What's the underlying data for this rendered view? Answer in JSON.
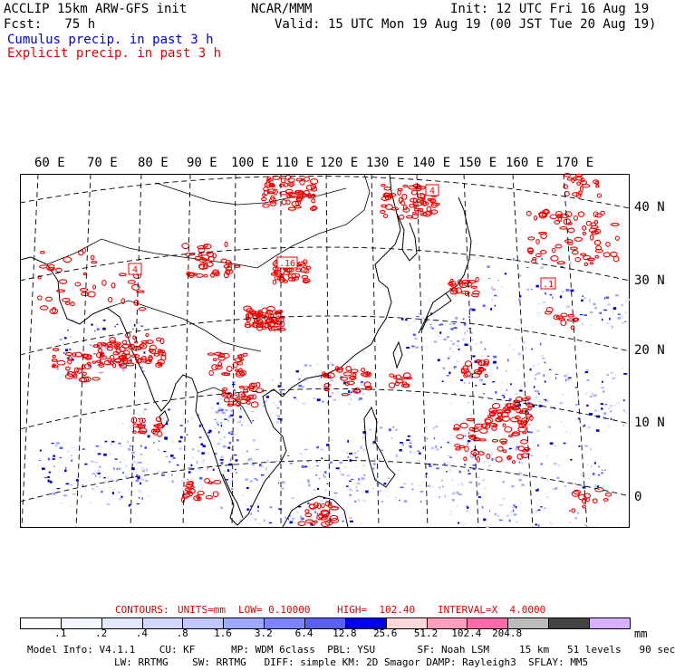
{
  "header": {
    "line1_left": "ACCLIP 15km ARW-GFS init",
    "line1_center": "NCAR/MMM",
    "line1_right": "Init: 12 UTC Fri 16 Aug 19",
    "line2_left": "Fcst:   75 h",
    "line2_right": "Valid: 15 UTC Mon 19 Aug 19 (00 JST Tue 20 Aug 19)",
    "legend_cumulus": "Cumulus precip. in past 3 h",
    "legend_explicit": "Explicit precip. in past 3 h"
  },
  "colors": {
    "cumulus": "#0000cc",
    "explicit": "#ee0000",
    "coast": "#000000",
    "grid": "#000000"
  },
  "axes": {
    "lon_labels": [
      "60 E",
      "70 E",
      "80 E",
      "90 E",
      "100 E",
      "110 E",
      "120 E",
      "130 E",
      "140 E",
      "150 E",
      "160 E",
      "170 E"
    ],
    "lat_labels": [
      "40 N",
      "30 N",
      "20 N",
      "10 N",
      "0"
    ]
  },
  "map_labels": {
    "box1": "4",
    "box2": "4",
    "box3": ".16",
    "box4": ".1"
  },
  "contours_info": {
    "contours": "CONTOURS:",
    "units": "UNITS=mm",
    "low": "LOW= 0.10000",
    "high": "HIGH=  102.40",
    "interval": "INTERVAL=X  4.0000"
  },
  "colorbar": {
    "colors": [
      "#ffffff",
      "#f4f6ff",
      "#e4e8ff",
      "#d2d8ff",
      "#c0c8ff",
      "#9ea8ff",
      "#7c84ff",
      "#5a60ff",
      "#0000ee",
      "#ffd8dc",
      "#ff9ebc",
      "#ff6aa8",
      "#bcbcbc",
      "#444444",
      "#d8b0ff"
    ],
    "ticks": [
      ".1",
      ".2",
      ".4",
      ".8",
      "1.6",
      "3.2",
      "6.4",
      "12.8",
      "25.6",
      "51.2",
      "102.4",
      "204.8"
    ],
    "unit": "mm"
  },
  "footer": {
    "line1": "Model Info: V4.1.1    CU: KF      MP: WDM 6class  PBL: YSU       SF: Noah LSM     15 km   51 levels   90 sec",
    "line2": "LW: RRTMG    SW: RRTMG   DIFF: simple KM: 2D Smagor DAMP: Rayleigh3  SFLAY: MM5"
  }
}
